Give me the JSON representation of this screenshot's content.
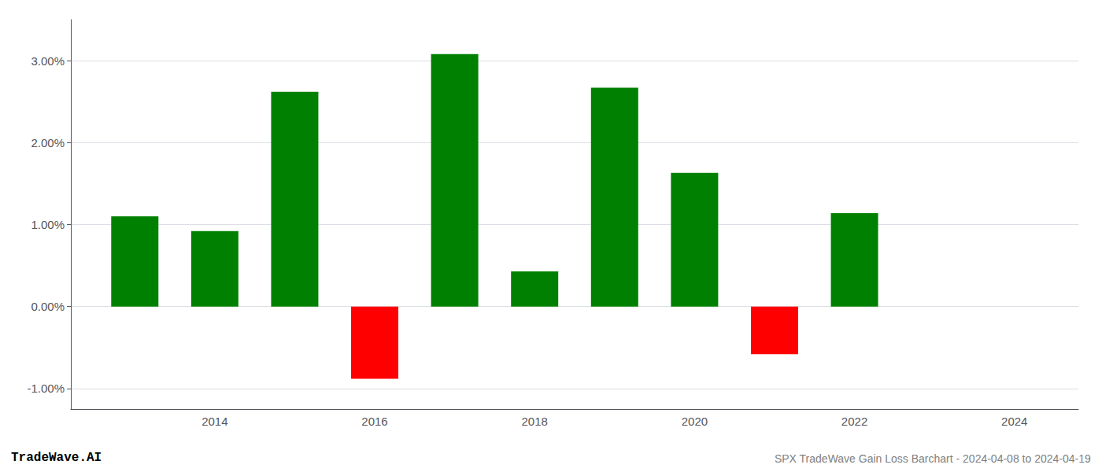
{
  "chart_data": {
    "type": "bar",
    "x": [
      2013,
      2014,
      2015,
      2016,
      2017,
      2018,
      2019,
      2020,
      2021,
      2022
    ],
    "values": [
      1.1,
      0.92,
      2.62,
      -0.88,
      3.08,
      0.43,
      2.67,
      1.63,
      -0.58,
      1.14
    ],
    "colors": [
      "#008000",
      "#008000",
      "#008000",
      "#ff0000",
      "#008000",
      "#008000",
      "#008000",
      "#008000",
      "#ff0000",
      "#008000"
    ],
    "xlim": [
      2012.2,
      2024.8
    ],
    "xticks": [
      2014,
      2016,
      2018,
      2020,
      2022,
      2024
    ],
    "ylim": [
      -1.25,
      3.5
    ],
    "yticks": [
      {
        "value": -1.0,
        "label": "-1.00%"
      },
      {
        "value": 0.0,
        "label": "0.00%"
      },
      {
        "value": 1.0,
        "label": "1.00%"
      },
      {
        "value": 2.0,
        "label": "2.00%"
      },
      {
        "value": 3.0,
        "label": "3.00%"
      }
    ],
    "grid": true,
    "annotations": [
      "TradeWave.AI",
      "SPX TradeWave Gain Loss Barchart - 2024-04-08 to 2024-04-19"
    ]
  }
}
